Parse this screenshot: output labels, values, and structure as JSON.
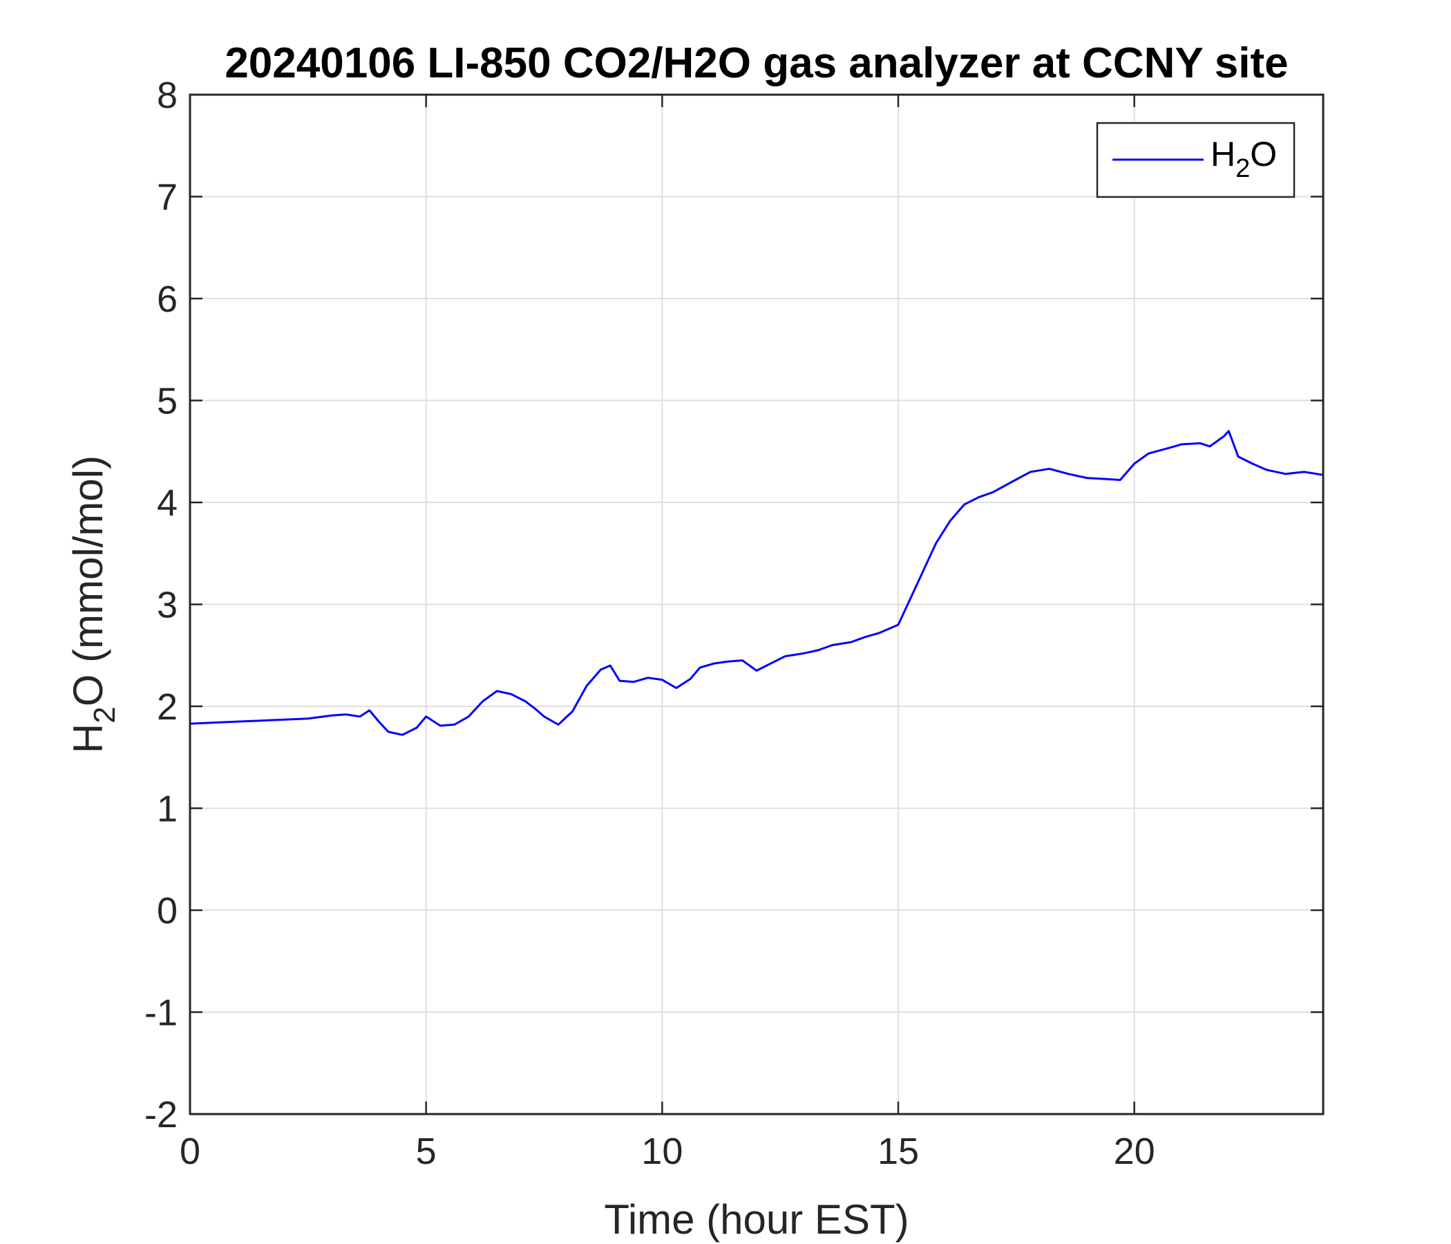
{
  "chart_data": {
    "type": "line",
    "title": "20240106 LI-850 CO2/H2O gas analyzer at CCNY site",
    "xlabel": "Time (hour EST)",
    "ylabel": {
      "base": "H",
      "sub": "2",
      "rest": "O (mmol/mol)"
    },
    "xlim": [
      0,
      24
    ],
    "ylim": [
      -2,
      8
    ],
    "xticks": [
      0,
      5,
      10,
      15,
      20
    ],
    "yticks": [
      -2,
      -1,
      0,
      1,
      2,
      3,
      4,
      5,
      6,
      7,
      8
    ],
    "grid": true,
    "legend_position": "top-right",
    "series": [
      {
        "name": {
          "base": "H",
          "sub": "2",
          "rest": "O"
        },
        "color": "#0000ff",
        "x": [
          0.0,
          0.5,
          1.0,
          1.5,
          2.0,
          2.5,
          3.0,
          3.3,
          3.6,
          3.8,
          4.0,
          4.2,
          4.5,
          4.8,
          5.0,
          5.3,
          5.6,
          5.9,
          6.2,
          6.5,
          6.8,
          7.1,
          7.3,
          7.5,
          7.8,
          8.1,
          8.4,
          8.7,
          8.9,
          9.1,
          9.4,
          9.7,
          10.0,
          10.3,
          10.6,
          10.8,
          11.1,
          11.4,
          11.7,
          12.0,
          12.3,
          12.6,
          13.0,
          13.3,
          13.6,
          14.0,
          14.3,
          14.6,
          15.0,
          15.2,
          15.5,
          15.8,
          16.1,
          16.4,
          16.7,
          17.0,
          17.4,
          17.8,
          18.2,
          18.6,
          19.0,
          19.4,
          19.7,
          20.0,
          20.3,
          20.7,
          21.0,
          21.4,
          21.6,
          21.9,
          22.0,
          22.2,
          22.5,
          22.8,
          23.2,
          23.6,
          24.0
        ],
        "y": [
          1.83,
          1.84,
          1.85,
          1.86,
          1.87,
          1.88,
          1.91,
          1.92,
          1.9,
          1.96,
          1.85,
          1.75,
          1.72,
          1.79,
          1.9,
          1.81,
          1.82,
          1.9,
          2.05,
          2.15,
          2.12,
          2.05,
          1.98,
          1.9,
          1.82,
          1.95,
          2.2,
          2.36,
          2.4,
          2.25,
          2.24,
          2.28,
          2.26,
          2.18,
          2.27,
          2.38,
          2.42,
          2.44,
          2.45,
          2.35,
          2.42,
          2.49,
          2.52,
          2.55,
          2.6,
          2.63,
          2.68,
          2.72,
          2.8,
          3.0,
          3.3,
          3.6,
          3.82,
          3.98,
          4.05,
          4.1,
          4.2,
          4.3,
          4.33,
          4.28,
          4.24,
          4.23,
          4.22,
          4.38,
          4.48,
          4.53,
          4.57,
          4.58,
          4.55,
          4.65,
          4.7,
          4.45,
          4.38,
          4.32,
          4.28,
          4.3,
          4.27
        ]
      }
    ]
  }
}
